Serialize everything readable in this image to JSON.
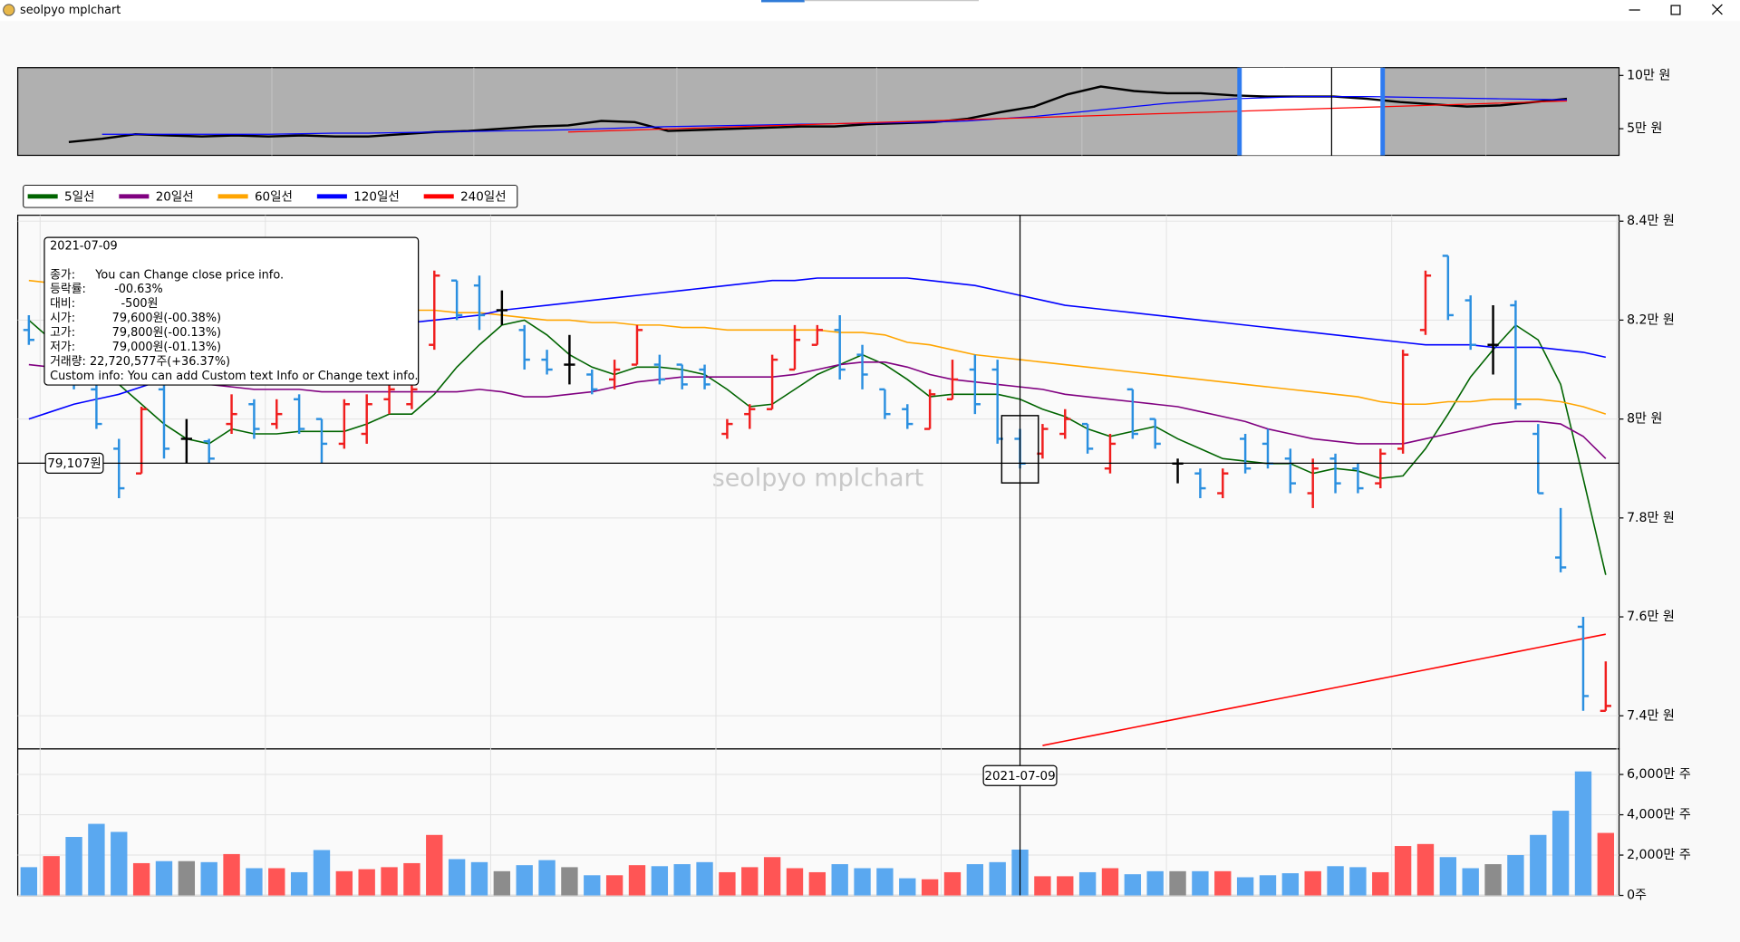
{
  "window": {
    "title": "seolpyo mplchart"
  },
  "watermark": "seolpyo mplchart",
  "crosshair": {
    "price": {
      "value": 79107,
      "label": "79,107원"
    }
  },
  "tooltip": {
    "rows": [
      [
        "종가:",
        "You can Change close price info."
      ],
      [
        "등락률:",
        "-00.63%"
      ],
      [
        "대비:",
        "-500원"
      ],
      [
        "시가:",
        "79,600원(-00.38%)"
      ],
      [
        "고가:",
        "79,800원(-00.13%)"
      ],
      [
        "저가:",
        "79,000원(-01.13%)"
      ]
    ],
    "volume": "거래량: 22,720,577주(+36.37%)",
    "custom": "Custom info: You can add Custom text Info or Change text info."
  },
  "chart_data": [
    {
      "type": "line",
      "ylim": [
        25000,
        107300
      ],
      "yticks": [
        {
          "value": 100000,
          "label": "10만 원"
        },
        {
          "value": 50000,
          "label": "5만 원"
        }
      ],
      "series": [
        {
          "color": "#000000",
          "values": [
            37500,
            40600,
            44800,
            43700,
            42700,
            43700,
            42700,
            43700,
            42700,
            42700,
            44800,
            46900,
            47900,
            50000,
            52100,
            53100,
            57300,
            56200,
            47900,
            48900,
            50000,
            51000,
            52100,
            52100,
            54200,
            55200,
            56200,
            59400,
            65600,
            70800,
            82300,
            89600,
            85400,
            83300,
            83300,
            81300,
            80200,
            80200,
            80200,
            78100,
            75000,
            72900,
            70800,
            71900,
            75000,
            78100
          ]
        },
        {
          "color": "#0000ff",
          "values": [
            null,
            44800,
            44800,
            44800,
            44800,
            44800,
            44800,
            45300,
            45800,
            45800,
            46400,
            46900,
            47400,
            47900,
            48400,
            49000,
            50000,
            51000,
            52000,
            52500,
            53100,
            53600,
            54200,
            54700,
            55200,
            55700,
            56200,
            57300,
            59400,
            61500,
            64500,
            67700,
            70800,
            73900,
            76000,
            78100,
            79100,
            80200,
            80200,
            80200,
            79600,
            79100,
            78600,
            78100,
            77600,
            77100
          ]
        },
        {
          "color": "#ff0000",
          "values": [
            null,
            null,
            null,
            null,
            null,
            null,
            null,
            null,
            null,
            null,
            null,
            null,
            null,
            null,
            null,
            46900,
            47870,
            48840,
            49810,
            50780,
            51750,
            52720,
            53690,
            54660,
            55630,
            56600,
            57570,
            58540,
            59510,
            60480,
            61450,
            62420,
            63390,
            64360,
            65330,
            66300,
            67270,
            68240,
            69210,
            70180,
            71150,
            72120,
            73090,
            74060,
            75030,
            76000
          ]
        }
      ]
    },
    {
      "type": "ohlc",
      "ylim": [
        73330,
        84120
      ],
      "yticks": [
        {
          "value": 84000,
          "label": "8.4만 원"
        },
        {
          "value": 82000,
          "label": "8.2만 원"
        },
        {
          "value": 80000,
          "label": "8만 원"
        },
        {
          "value": 78000,
          "label": "7.8만 원"
        },
        {
          "value": 76000,
          "label": "7.6만 원"
        },
        {
          "value": 74000,
          "label": "7.4만 원"
        }
      ],
      "grid": true,
      "legend": "upper left",
      "colors": {
        "up": "#f01e1e",
        "down": "#2a8fe0",
        "flat": "#000000"
      },
      "categories": [
        null,
        null,
        null,
        null,
        null,
        null,
        null,
        null,
        null,
        null,
        null,
        null,
        null,
        null,
        null,
        null,
        null,
        null,
        null,
        null,
        null,
        null,
        null,
        null,
        null,
        null,
        null,
        null,
        null,
        null,
        null,
        null,
        null,
        null,
        null,
        null,
        null,
        null,
        null,
        null,
        null,
        null,
        null,
        null,
        "2021-07-09",
        null,
        null,
        null,
        null,
        null,
        null,
        null,
        null,
        null,
        null,
        null,
        null,
        null,
        null,
        null,
        null,
        null,
        null,
        null,
        null,
        null,
        null,
        null,
        null,
        null,
        null
      ],
      "open": [
        81800,
        81000,
        81500,
        80600,
        79400,
        78900,
        80600,
        79600,
        79550,
        79900,
        80300,
        79900,
        80400,
        80000,
        79500,
        79700,
        80400,
        80300,
        81500,
        82800,
        82700,
        82200,
        81800,
        81200,
        81100,
        80900,
        80800,
        81100,
        81100,
        81100,
        81000,
        79700,
        80100,
        80200,
        81000,
        81500,
        81800,
        81300,
        80600,
        80200,
        79800,
        80400,
        81000,
        81000,
        79600,
        79300,
        79700,
        79900,
        79000,
        80600,
        80000,
        79100,
        78900,
        78500,
        79600,
        79500,
        79200,
        78500,
        79200,
        79000,
        78700,
        79400,
        81800,
        83300,
        82400,
        81500,
        82300,
        79700,
        77200,
        75800,
        74100
      ],
      "high": [
        82100,
        81800,
        81700,
        80700,
        79600,
        80250,
        80800,
        80000,
        79600,
        80500,
        80400,
        80400,
        80500,
        80000,
        80400,
        80500,
        80700,
        80700,
        83000,
        82800,
        82900,
        82600,
        81900,
        81400,
        81700,
        81000,
        81200,
        81900,
        81300,
        81100,
        81100,
        80000,
        80300,
        81300,
        81900,
        81900,
        82100,
        81500,
        80600,
        80300,
        80600,
        81200,
        81300,
        81200,
        79800,
        79900,
        80200,
        79900,
        79700,
        80600,
        80000,
        79200,
        79000,
        79000,
        79700,
        79800,
        79400,
        79200,
        79300,
        79100,
        79400,
        81400,
        83000,
        83300,
        82500,
        82300,
        82400,
        79900,
        78200,
        76000,
        75100
      ],
      "low": [
        81500,
        80900,
        80600,
        79800,
        78400,
        78900,
        79200,
        79100,
        79100,
        79700,
        79600,
        79800,
        79700,
        79100,
        79400,
        79500,
        80100,
        80200,
        81400,
        82000,
        81800,
        81900,
        81000,
        80900,
        80700,
        80500,
        80600,
        81100,
        80700,
        80600,
        80600,
        79600,
        79800,
        80200,
        81000,
        81500,
        80800,
        80600,
        80000,
        79800,
        79800,
        80400,
        80100,
        79500,
        79000,
        79200,
        79600,
        79300,
        78900,
        79600,
        79400,
        78700,
        78400,
        78400,
        78900,
        79000,
        78500,
        78200,
        78500,
        78500,
        78600,
        79300,
        81700,
        82000,
        81400,
        80900,
        80200,
        78500,
        76900,
        74100,
        74100
      ],
      "close": [
        81600,
        81700,
        80700,
        79900,
        78600,
        80200,
        79400,
        79600,
        79200,
        80100,
        79800,
        80100,
        79800,
        79500,
        80300,
        80300,
        80600,
        80600,
        82900,
        82100,
        82100,
        82200,
        81200,
        81000,
        81100,
        80600,
        81000,
        81800,
        80800,
        80700,
        80700,
        79900,
        80200,
        81200,
        81600,
        81800,
        81000,
        80900,
        80100,
        79900,
        80500,
        80800,
        80300,
        79600,
        79100,
        79800,
        80000,
        79400,
        79500,
        79700,
        79500,
        79100,
        78600,
        78900,
        79000,
        79100,
        78700,
        79000,
        78700,
        78600,
        79300,
        81300,
        82900,
        82100,
        81500,
        81500,
        80300,
        78500,
        77000,
        74400,
        74200
      ],
      "series": [
        {
          "name": "5일선",
          "color": "#006400",
          "values": [
            82000,
            81600,
            81200,
            80900,
            80700,
            80300,
            79900,
            79600,
            79500,
            79800,
            79700,
            79700,
            79750,
            79750,
            79750,
            79900,
            80100,
            80100,
            80500,
            81050,
            81500,
            81900,
            82000,
            81700,
            81300,
            81050,
            80900,
            81050,
            81050,
            81000,
            80900,
            80600,
            80250,
            80300,
            80600,
            80900,
            81100,
            81300,
            81100,
            80800,
            80450,
            80500,
            80500,
            80500,
            80400,
            80200,
            80050,
            79800,
            79650,
            79750,
            79850,
            79600,
            79400,
            79200,
            79150,
            79100,
            79100,
            78900,
            79000,
            78950,
            78800,
            78850,
            79400,
            80100,
            80850,
            81400,
            81900,
            81600,
            80700,
            78800,
            76850
          ]
        },
        {
          "name": "20일선",
          "color": "#800080",
          "values": [
            81100,
            81050,
            81000,
            80950,
            80900,
            80850,
            80800,
            80750,
            80700,
            80650,
            80600,
            80600,
            80600,
            80550,
            80550,
            80550,
            80550,
            80550,
            80550,
            80550,
            80600,
            80550,
            80450,
            80450,
            80500,
            80550,
            80650,
            80750,
            80800,
            80850,
            80850,
            80850,
            80850,
            80850,
            80900,
            81000,
            81100,
            81150,
            81150,
            81050,
            80900,
            80800,
            80750,
            80700,
            80650,
            80600,
            80500,
            80450,
            80400,
            80350,
            80300,
            80250,
            80150,
            80050,
            79950,
            79800,
            79700,
            79600,
            79550,
            79500,
            79500,
            79500,
            79600,
            79700,
            79800,
            79900,
            79950,
            79950,
            79900,
            79650,
            79200
          ]
        },
        {
          "name": "60일선",
          "color": "#ffa500",
          "values": [
            82800,
            82750,
            82700,
            82650,
            82600,
            82550,
            82500,
            82450,
            82400,
            82350,
            82300,
            82300,
            82250,
            82250,
            82200,
            82200,
            82200,
            82200,
            82200,
            82150,
            82150,
            82100,
            82050,
            82000,
            82000,
            81950,
            81950,
            81900,
            81900,
            81850,
            81850,
            81800,
            81800,
            81800,
            81800,
            81800,
            81750,
            81750,
            81700,
            81550,
            81500,
            81400,
            81300,
            81250,
            81200,
            81150,
            81100,
            81050,
            81000,
            80950,
            80900,
            80850,
            80800,
            80750,
            80700,
            80650,
            80600,
            80550,
            80500,
            80450,
            80350,
            80300,
            80300,
            80350,
            80350,
            80400,
            80400,
            80400,
            80350,
            80250,
            80100
          ]
        },
        {
          "name": "120일선",
          "color": "#0000ff",
          "values": [
            80000,
            80150,
            80300,
            80400,
            80500,
            80650,
            80800,
            80950,
            81100,
            81250,
            81350,
            81450,
            81550,
            81650,
            81750,
            81800,
            81900,
            81950,
            82000,
            82050,
            82100,
            82200,
            82250,
            82300,
            82350,
            82400,
            82450,
            82500,
            82550,
            82600,
            82650,
            82700,
            82750,
            82800,
            82800,
            82850,
            82850,
            82850,
            82850,
            82850,
            82800,
            82750,
            82700,
            82600,
            82500,
            82400,
            82300,
            82250,
            82200,
            82150,
            82100,
            82050,
            82000,
            81950,
            81900,
            81850,
            81800,
            81750,
            81700,
            81650,
            81600,
            81550,
            81500,
            81500,
            81500,
            81450,
            81450,
            81450,
            81400,
            81350,
            81250
          ]
        },
        {
          "name": "240일선",
          "color": "#ff0000",
          "values": [
            null,
            null,
            null,
            null,
            null,
            null,
            null,
            null,
            null,
            null,
            null,
            null,
            null,
            null,
            null,
            null,
            null,
            null,
            null,
            null,
            null,
            null,
            null,
            null,
            null,
            null,
            null,
            null,
            null,
            null,
            null,
            null,
            null,
            null,
            null,
            null,
            null,
            null,
            null,
            null,
            null,
            null,
            null,
            null,
            null,
            73400,
            73490,
            73580,
            73670,
            73760,
            73850,
            73940,
            74030,
            74120,
            74210,
            74300,
            74390,
            74480,
            74570,
            74660,
            74750,
            74840,
            74930,
            75020,
            75110,
            75200,
            75290,
            75380,
            75470,
            75560,
            75650
          ]
        }
      ]
    },
    {
      "type": "bar",
      "ylim": [
        0,
        72660000
      ],
      "grid": true,
      "colors": {
        "up": "#ff5555",
        "down": "#5aa8f0",
        "flat": "#8c8c8c"
      },
      "yticks": [
        {
          "value": 0,
          "label": "0주"
        },
        {
          "value": 20000000,
          "label": "2,000만 주"
        },
        {
          "value": 40000000,
          "label": "4,000만 주"
        },
        {
          "value": 60000000,
          "label": "6,000만 주"
        }
      ],
      "values": [
        14000000,
        19500000,
        29000000,
        35500000,
        31500000,
        16000000,
        17000000,
        17000000,
        16500000,
        20500000,
        13500000,
        13500000,
        11500000,
        22500000,
        12000000,
        13000000,
        14000000,
        16000000,
        30000000,
        18000000,
        16500000,
        12000000,
        15000000,
        17500000,
        14000000,
        10000000,
        10000000,
        15000000,
        14500000,
        15500000,
        16500000,
        11500000,
        14000000,
        19000000,
        13500000,
        11500000,
        15500000,
        13500000,
        13500000,
        8500000,
        8000000,
        11500000,
        15500000,
        16500000,
        22720577,
        9500000,
        9500000,
        11500000,
        13500000,
        10500000,
        12000000,
        12000000,
        12000000,
        12000000,
        9000000,
        10000000,
        11000000,
        12000000,
        14500000,
        14000000,
        11500000,
        24500000,
        25500000,
        19000000,
        13500000,
        15500000,
        20000000,
        30000000,
        42000000,
        61500000,
        31000000
      ]
    }
  ]
}
